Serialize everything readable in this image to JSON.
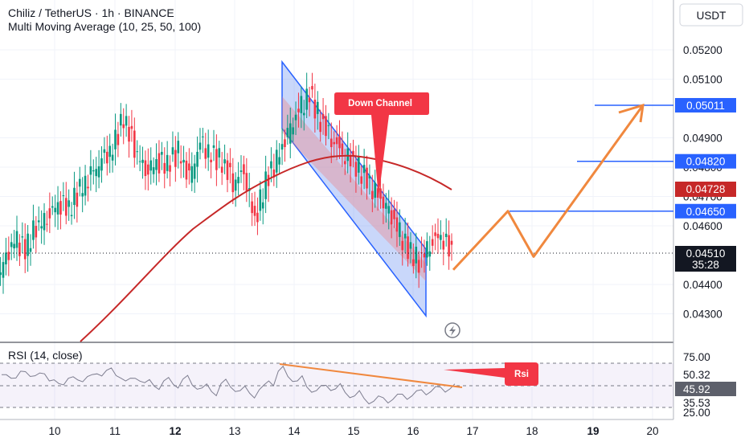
{
  "chart_data": {
    "type": "candlestick",
    "title": "Chiliz / TetherUS · 1h · BINANCE",
    "subtitle": "Multi Moving Average (10, 25, 50, 100)",
    "currency": "USDT",
    "y_axis": {
      "range": [
        0.042,
        0.0535
      ],
      "ticks": [
        "0.05200",
        "0.05100",
        "0.04900",
        "0.04800",
        "0.04700",
        "0.04600",
        "0.04400",
        "0.04300"
      ]
    },
    "x_axis": {
      "ticks": [
        {
          "label": "10",
          "bold": false
        },
        {
          "label": "11",
          "bold": false
        },
        {
          "label": "12",
          "bold": true
        },
        {
          "label": "13",
          "bold": false
        },
        {
          "label": "14",
          "bold": false
        },
        {
          "label": "15",
          "bold": false
        },
        {
          "label": "16",
          "bold": false
        },
        {
          "label": "17",
          "bold": false
        },
        {
          "label": "18",
          "bold": false
        },
        {
          "label": "19",
          "bold": true
        },
        {
          "label": "20",
          "bold": false
        }
      ]
    },
    "levels": [
      {
        "value": 0.05011,
        "label": "0.05011",
        "color": "#2962ff"
      },
      {
        "value": 0.0482,
        "label": "0.04820",
        "color": "#2962ff"
      },
      {
        "value": 0.0465,
        "label": "0.04650",
        "color": "#2962ff"
      }
    ],
    "moving_average_tag": {
      "value": 0.04728,
      "label": "0.04728",
      "color": "#c62828"
    },
    "current_price": {
      "value": 0.0451,
      "label": "0.04510",
      "countdown": "35:28"
    },
    "annotations": {
      "down_channel": "Down Channel",
      "rsi_note": "Rsi"
    },
    "projection": [
      0.0445,
      0.0465,
      0.04495,
      0.05011
    ],
    "candles_approx": [
      0.0446,
      0.0455,
      0.0452,
      0.046,
      0.0463,
      0.0468,
      0.0466,
      0.0472,
      0.0477,
      0.0482,
      0.0486,
      0.0497,
      0.0487,
      0.0479,
      0.0482,
      0.0481,
      0.0485,
      0.0476,
      0.0488,
      0.0484,
      0.0482,
      0.0475,
      0.0479,
      0.0462,
      0.0475,
      0.0482,
      0.0491,
      0.0499,
      0.0505,
      0.0496,
      0.049,
      0.0485,
      0.0482,
      0.0477,
      0.0471,
      0.0466,
      0.0459,
      0.0452,
      0.0448,
      0.0454,
      0.0457,
      0.0451
    ],
    "rsi": {
      "label": "RSI (14, close)",
      "ticks": [
        "75.00",
        "50.32",
        "45.92",
        "35.53",
        "25.00"
      ],
      "range": [
        20,
        80
      ],
      "current": 45.92,
      "values_approx": [
        62,
        58,
        66,
        60,
        64,
        55,
        52,
        58,
        56,
        60,
        63,
        67,
        61,
        55,
        58,
        53,
        49,
        55,
        51,
        57,
        50,
        47,
        43,
        52,
        48,
        44,
        41,
        45,
        55,
        66,
        60,
        55,
        48,
        44,
        50,
        46,
        42,
        38,
        35,
        32,
        36,
        34,
        40,
        38,
        45,
        43,
        48,
        46
      ]
    }
  }
}
